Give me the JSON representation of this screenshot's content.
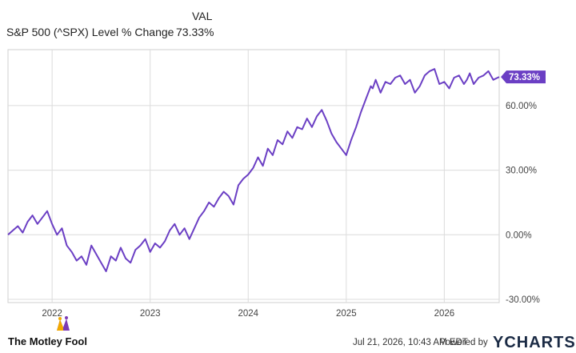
{
  "legend": {
    "header": "VAL",
    "series_label": "S&P 500 (^SPX) Level % Change",
    "series_value": "73.33%"
  },
  "footer": {
    "brand": "The Motley Fool",
    "timestamp": "Jul 21, 2026, 10:43 AM EDT",
    "powered_by": "Powered by",
    "ycharts": "YCHARTS"
  },
  "colors": {
    "line": "#6b3fc4",
    "grid": "#dcdcdc",
    "plot_border": "#cfcfcf",
    "badge": "#6b3fc4"
  },
  "chart_data": {
    "type": "line",
    "title": "",
    "xlabel": "",
    "ylabel": "",
    "y_tick_labels": [
      "-30.00%",
      "0.00%",
      "30.00%",
      "60.00%"
    ],
    "y_ticks": [
      -30,
      0,
      30,
      60
    ],
    "x_tick_labels": [
      "2022",
      "2023",
      "2024",
      "2025",
      "2026"
    ],
    "x_ticks": [
      2022.0,
      2023.0,
      2024.0,
      2025.0,
      2026.0
    ],
    "xlim": [
      2021.55,
      2026.56
    ],
    "ylim": [
      -31.5,
      86
    ],
    "grid": true,
    "last_value_label": "73.33%",
    "series": [
      {
        "name": "S&P 500 (^SPX) Level % Change",
        "x": [
          2021.55,
          2021.6,
          2021.65,
          2021.7,
          2021.75,
          2021.8,
          2021.85,
          2021.9,
          2021.95,
          2022.0,
          2022.05,
          2022.1,
          2022.15,
          2022.2,
          2022.25,
          2022.3,
          2022.35,
          2022.4,
          2022.45,
          2022.5,
          2022.55,
          2022.6,
          2022.65,
          2022.7,
          2022.75,
          2022.8,
          2022.85,
          2022.9,
          2022.95,
          2023.0,
          2023.05,
          2023.1,
          2023.15,
          2023.2,
          2023.25,
          2023.3,
          2023.35,
          2023.4,
          2023.45,
          2023.5,
          2023.55,
          2023.6,
          2023.65,
          2023.7,
          2023.75,
          2023.8,
          2023.85,
          2023.9,
          2023.95,
          2024.0,
          2024.05,
          2024.1,
          2024.15,
          2024.2,
          2024.25,
          2024.3,
          2024.35,
          2024.4,
          2024.45,
          2024.5,
          2024.55,
          2024.6,
          2024.65,
          2024.7,
          2024.75,
          2024.8,
          2024.85,
          2024.9,
          2024.95,
          2025.0,
          2025.05,
          2025.1,
          2025.15,
          2025.2,
          2025.25,
          2025.27,
          2025.3,
          2025.35,
          2025.4,
          2025.45,
          2025.5,
          2025.55,
          2025.6,
          2025.65,
          2025.7,
          2025.75,
          2025.8,
          2025.85,
          2025.9,
          2025.95,
          2026.0,
          2026.05,
          2026.1,
          2026.15,
          2026.2,
          2026.23,
          2026.26,
          2026.3,
          2026.35,
          2026.4,
          2026.45,
          2026.5,
          2026.56
        ],
        "values": [
          0,
          2,
          4,
          1,
          6,
          9,
          5,
          8,
          11,
          5,
          0,
          3,
          -5,
          -8,
          -12,
          -10,
          -14,
          -5,
          -9,
          -13,
          -17,
          -10,
          -12,
          -6,
          -11,
          -13,
          -7,
          -5,
          -2,
          -8,
          -4,
          -6,
          -3,
          2,
          5,
          0,
          3,
          -2,
          3,
          8,
          11,
          15,
          13,
          17,
          20,
          18,
          14,
          23,
          26,
          28,
          31,
          36,
          32,
          40,
          37,
          44,
          42,
          48,
          45,
          50,
          49,
          54,
          50,
          55,
          58,
          53,
          47,
          43,
          40,
          37,
          44,
          50,
          57,
          63,
          69,
          68,
          72,
          66,
          71,
          70,
          73,
          74,
          70,
          72,
          66,
          69,
          74,
          76,
          77,
          70,
          71,
          68,
          73,
          74,
          70,
          72,
          75,
          70,
          73,
          74,
          76,
          72,
          73.33
        ]
      }
    ]
  }
}
